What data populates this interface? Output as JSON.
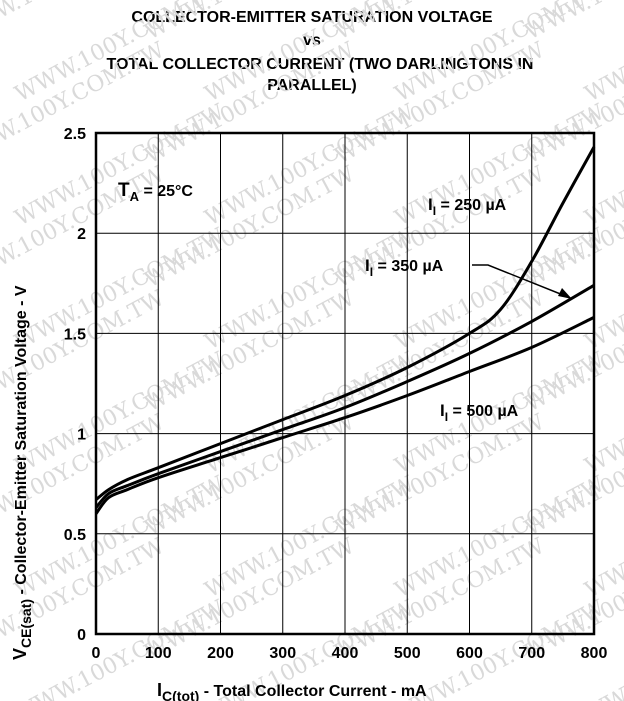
{
  "chart_data": {
    "type": "line",
    "title": "COLLECTOR-EMITTER SATURATION VOLTAGE",
    "title_vs": "vs",
    "title_line3": "TOTAL COLLECTOR CURRENT (TWO DARLINGTONS IN",
    "title_line4": "PARALLEL)",
    "xlabel": {
      "sym": "I",
      "sub": "C(tot)",
      "text": " - Total Collector Current - mA"
    },
    "ylabel": {
      "sym": "V",
      "sub": "CE(sat)",
      "text": " - Collector-Emitter Saturation Voltage - V"
    },
    "xlim": [
      0,
      800
    ],
    "ylim": [
      0,
      2.5
    ],
    "x_ticks": [
      "0",
      "100",
      "200",
      "300",
      "400",
      "500",
      "600",
      "700",
      "800"
    ],
    "y_ticks": [
      "0",
      "0.5",
      "1",
      "1.5",
      "2",
      "2.5"
    ],
    "grid": true,
    "condition": {
      "sym": "T",
      "sub": "A",
      "text": " = 25°C"
    },
    "series": [
      {
        "name": "250",
        "label_sym": "I",
        "label_sub": "I",
        "label_text": " = 250 µA",
        "x": [
          0,
          20,
          50,
          100,
          200,
          300,
          400,
          500,
          600,
          650,
          700,
          750,
          800
        ],
        "y": [
          0.67,
          0.72,
          0.77,
          0.83,
          0.95,
          1.07,
          1.19,
          1.33,
          1.5,
          1.62,
          1.86,
          2.15,
          2.43
        ]
      },
      {
        "name": "350",
        "label_sym": "I",
        "label_sub": "I",
        "label_text": " = 350 µA",
        "x": [
          0,
          20,
          50,
          100,
          200,
          300,
          400,
          500,
          600,
          700,
          800
        ],
        "y": [
          0.63,
          0.7,
          0.74,
          0.8,
          0.91,
          1.02,
          1.13,
          1.26,
          1.4,
          1.56,
          1.74
        ]
      },
      {
        "name": "500",
        "label_sym": "I",
        "label_sub": "I",
        "label_text": " = 500 µA",
        "x": [
          0,
          20,
          50,
          100,
          200,
          300,
          400,
          500,
          600,
          700,
          800
        ],
        "y": [
          0.6,
          0.68,
          0.72,
          0.78,
          0.88,
          0.98,
          1.08,
          1.19,
          1.31,
          1.43,
          1.58
        ]
      }
    ]
  },
  "watermark": "WWW.100Y.COM.TW"
}
